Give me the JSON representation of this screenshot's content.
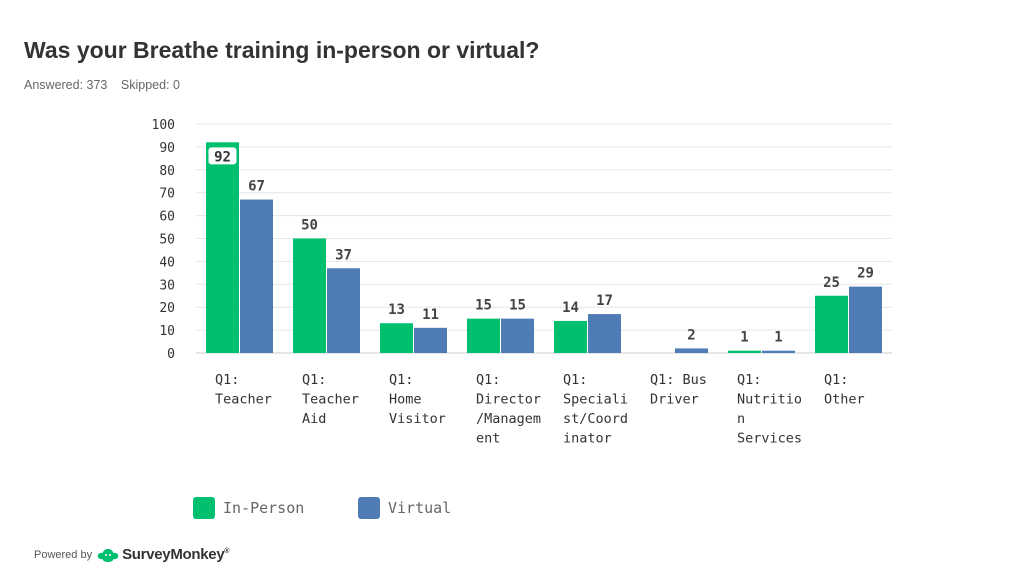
{
  "header": {
    "title": "Was your Breathe training in-person or virtual?",
    "answered_label": "Answered: 373",
    "skipped_label": "Skipped: 0"
  },
  "chart_data": {
    "type": "bar",
    "title": "Was your Breathe training in-person or virtual?",
    "xlabel": "",
    "ylabel": "",
    "ylim": [
      0,
      100
    ],
    "yticks": [
      0,
      10,
      20,
      30,
      40,
      50,
      60,
      70,
      80,
      90,
      100
    ],
    "grid": true,
    "legend_position": "bottom",
    "categories": [
      [
        "Q1:",
        "Teacher"
      ],
      [
        "Q1:",
        "Teacher",
        "Aid"
      ],
      [
        "Q1:",
        "Home",
        "Visitor"
      ],
      [
        "Q1:",
        "Director",
        "/Managem",
        "ent"
      ],
      [
        "Q1:",
        "Speciali",
        "st/Coord",
        "inator"
      ],
      [
        "Q1: Bus",
        "Driver"
      ],
      [
        "Q1:",
        "Nutritio",
        "n",
        "Services"
      ],
      [
        "Q1:",
        "Other"
      ]
    ],
    "series": [
      {
        "name": "In-Person",
        "color": "#00bf6f",
        "values": [
          92,
          50,
          13,
          15,
          14,
          0,
          1,
          25
        ]
      },
      {
        "name": "Virtual",
        "color": "#507cb6",
        "values": [
          67,
          37,
          11,
          15,
          17,
          2,
          1,
          29
        ]
      }
    ],
    "data_labels": [
      [
        "92",
        "67"
      ],
      [
        "50",
        "37"
      ],
      [
        "13",
        "11"
      ],
      [
        "15",
        "15"
      ],
      [
        "14",
        "17"
      ],
      [
        "",
        "2"
      ],
      [
        "1",
        "1"
      ],
      [
        "25",
        "29"
      ]
    ]
  },
  "footer": {
    "powered_by": "Powered by",
    "brand": "SurveyMonkey",
    "trademark": "®"
  },
  "colors": {
    "in_person": "#00bf6f",
    "virtual": "#507cb6",
    "grid": "#e6e6e6",
    "axis_text": "#333333"
  }
}
